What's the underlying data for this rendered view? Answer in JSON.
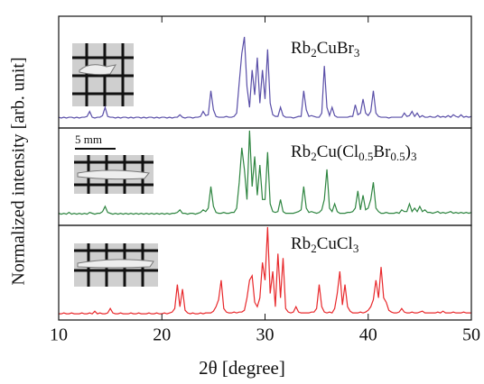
{
  "chart_data": {
    "type": "line",
    "xlabel": "2θ [degree]",
    "ylabel": "Normalized intensity [arb. unit]",
    "annotations": [
      "5 mm"
    ],
    "xlim": [
      10,
      50
    ],
    "xticks": [
      10,
      20,
      30,
      40,
      50
    ],
    "x": [
      10,
      10.25,
      10.5,
      10.75,
      11,
      11.25,
      11.5,
      11.75,
      12,
      12.25,
      12.5,
      12.75,
      13,
      13.25,
      13.5,
      13.75,
      14,
      14.25,
      14.5,
      14.75,
      15,
      15.25,
      15.5,
      15.75,
      16,
      16.25,
      16.5,
      16.75,
      17,
      17.25,
      17.5,
      17.75,
      18,
      18.25,
      18.5,
      18.75,
      19,
      19.25,
      19.5,
      19.75,
      20,
      20.25,
      20.5,
      20.75,
      21,
      21.25,
      21.5,
      21.75,
      22,
      22.25,
      22.5,
      22.75,
      23,
      23.25,
      23.5,
      23.75,
      24,
      24.25,
      24.5,
      24.75,
      25,
      25.25,
      25.5,
      25.75,
      26,
      26.25,
      26.5,
      26.75,
      27,
      27.25,
      27.5,
      27.75,
      28,
      28.25,
      28.5,
      28.75,
      29,
      29.25,
      29.5,
      29.75,
      30,
      30.25,
      30.5,
      30.75,
      31,
      31.25,
      31.5,
      31.75,
      32,
      32.25,
      32.5,
      32.75,
      33,
      33.25,
      33.5,
      33.75,
      34,
      34.25,
      34.5,
      34.75,
      35,
      35.25,
      35.5,
      35.75,
      36,
      36.25,
      36.5,
      36.75,
      37,
      37.25,
      37.5,
      37.75,
      38,
      38.25,
      38.5,
      38.75,
      39,
      39.25,
      39.5,
      39.75,
      40,
      40.25,
      40.5,
      40.75,
      41,
      41.25,
      41.5,
      41.75,
      42,
      42.25,
      42.5,
      42.75,
      43,
      43.25,
      43.5,
      43.75,
      44,
      44.25,
      44.5,
      44.75,
      45,
      45.25,
      45.5,
      45.75,
      46,
      46.25,
      46.5,
      46.75,
      47,
      47.25,
      47.5,
      47.75,
      48,
      48.25,
      48.5,
      48.75,
      49,
      49.25,
      49.5,
      49.75,
      50
    ],
    "series": [
      {
        "name": "Rb2CuBr3",
        "color": "#5a4fa8",
        "ylim": [
          -10,
          125
        ],
        "values": [
          3,
          2,
          3,
          2,
          3,
          3,
          2,
          3,
          2,
          3,
          3,
          4,
          10,
          3,
          2,
          3,
          3,
          5,
          15,
          4,
          3,
          3,
          2,
          3,
          2,
          3,
          3,
          2,
          3,
          2,
          3,
          3,
          2,
          3,
          2,
          3,
          3,
          2,
          3,
          2,
          3,
          3,
          2,
          3,
          2,
          3,
          3,
          6,
          3,
          2,
          3,
          3,
          2,
          3,
          3,
          4,
          10,
          5,
          6,
          35,
          12,
          4,
          3,
          3,
          3,
          4,
          3,
          3,
          4,
          8,
          45,
          80,
          100,
          40,
          15,
          60,
          30,
          75,
          20,
          60,
          25,
          85,
          20,
          6,
          4,
          4,
          15,
          5,
          3,
          3,
          3,
          2,
          3,
          4,
          4,
          35,
          12,
          4,
          5,
          4,
          3,
          3,
          8,
          65,
          15,
          5,
          15,
          5,
          3,
          3,
          3,
          3,
          3,
          4,
          4,
          18,
          6,
          8,
          25,
          8,
          5,
          10,
          35,
          8,
          4,
          3,
          3,
          3,
          2,
          3,
          3,
          3,
          3,
          3,
          8,
          4,
          5,
          10,
          4,
          8,
          3,
          5,
          3,
          3,
          4,
          3,
          3,
          5,
          3,
          4,
          3,
          5,
          3,
          6,
          4,
          3,
          6,
          3,
          4,
          3,
          4
        ]
      },
      {
        "name": "Rb2Cu(Cl0.5Br0.5)3",
        "color": "#2e8540",
        "ylim": [
          -10,
          103
        ],
        "values": [
          4,
          3,
          4,
          3,
          5,
          3,
          4,
          3,
          4,
          3,
          4,
          3,
          5,
          4,
          3,
          4,
          4,
          6,
          12,
          5,
          4,
          3,
          4,
          3,
          4,
          3,
          4,
          3,
          4,
          3,
          4,
          3,
          4,
          3,
          4,
          3,
          4,
          3,
          4,
          3,
          4,
          3,
          4,
          3,
          4,
          4,
          5,
          8,
          4,
          4,
          3,
          4,
          4,
          3,
          4,
          5,
          8,
          6,
          10,
          35,
          12,
          5,
          4,
          4,
          5,
          4,
          4,
          5,
          5,
          10,
          40,
          80,
          55,
          20,
          100,
          35,
          70,
          25,
          60,
          20,
          20,
          75,
          15,
          6,
          5,
          6,
          20,
          6,
          4,
          4,
          4,
          4,
          5,
          6,
          8,
          35,
          10,
          5,
          6,
          5,
          4,
          5,
          8,
          20,
          55,
          10,
          6,
          15,
          6,
          4,
          4,
          4,
          5,
          5,
          6,
          10,
          30,
          8,
          25,
          8,
          10,
          20,
          40,
          10,
          6,
          4,
          4,
          5,
          4,
          4,
          4,
          5,
          4,
          8,
          6,
          6,
          15,
          6,
          10,
          6,
          12,
          6,
          8,
          5,
          5,
          4,
          5,
          6,
          4,
          5,
          4,
          5,
          6,
          4,
          5,
          4,
          5,
          4,
          5,
          4,
          5
        ]
      },
      {
        "name": "Rb2CuCl3",
        "color": "#e8282b",
        "ylim": [
          -5,
          102
        ],
        "values": [
          2,
          2,
          3,
          2,
          2,
          3,
          2,
          2,
          2,
          3,
          2,
          2,
          3,
          2,
          5,
          2,
          3,
          2,
          2,
          3,
          8,
          3,
          2,
          2,
          3,
          2,
          2,
          2,
          3,
          2,
          2,
          3,
          2,
          2,
          2,
          3,
          2,
          2,
          3,
          2,
          2,
          3,
          2,
          3,
          4,
          8,
          35,
          10,
          30,
          6,
          3,
          2,
          3,
          2,
          2,
          3,
          2,
          3,
          3,
          3,
          5,
          10,
          18,
          40,
          8,
          4,
          3,
          3,
          4,
          3,
          4,
          4,
          6,
          20,
          40,
          45,
          15,
          10,
          20,
          60,
          40,
          100,
          25,
          50,
          10,
          70,
          20,
          65,
          8,
          4,
          3,
          4,
          10,
          4,
          3,
          3,
          3,
          3,
          4,
          4,
          8,
          35,
          10,
          4,
          3,
          4,
          3,
          8,
          25,
          50,
          12,
          35,
          10,
          5,
          3,
          3,
          3,
          4,
          3,
          4,
          6,
          10,
          18,
          40,
          20,
          55,
          20,
          15,
          6,
          4,
          3,
          3,
          4,
          8,
          4,
          3,
          3,
          4,
          3,
          3,
          4,
          5,
          3,
          3,
          3,
          3,
          3,
          4,
          3,
          5,
          3,
          3,
          3,
          4,
          3,
          3,
          3,
          4,
          3,
          3,
          3
        ]
      }
    ]
  }
}
